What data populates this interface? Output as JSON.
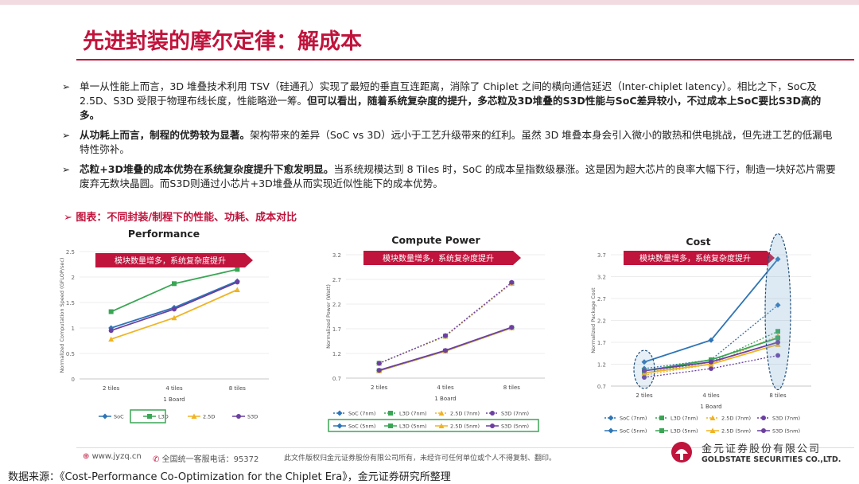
{
  "title": "先进封装的摩尔定律：解成本",
  "bullets": [
    {
      "mark": "➢",
      "parts": [
        {
          "t": "单一从性能上而言，3D 堆叠技术利用 TSV（硅通孔）实现了最短的垂直互连距离，消除了 Chiplet 之间的横向通信延迟（Inter-chiplet latency）。相比之下，SoC及2.5D、S3D 受限于物理布线长度，性能略逊一筹。",
          "b": false
        },
        {
          "t": "但可以看出，随着系统复杂度的提升，多芯粒及3D堆叠的S3D性能与SoC差异较小，不过成本上SoC要比S3D高的多。",
          "b": true
        }
      ]
    },
    {
      "mark": "➢",
      "parts": [
        {
          "t": "从功耗上而言，制程的优势较为显著。",
          "b": true
        },
        {
          "t": "架构带来的差异（SoC vs 3D）远小于工艺升级带来的红利。虽然 3D 堆叠本身会引入微小的散热和供电挑战，但先进工艺的低漏电特性弥补。",
          "b": false
        }
      ]
    },
    {
      "mark": "➢",
      "parts": [
        {
          "t": "芯粒+3D堆叠的成本优势在系统复杂度提升下愈发明显。",
          "b": true
        },
        {
          "t": "当系统规模达到 8 Tiles 时，SoC 的成本呈指数级暴涨。这是因为超大芯片的良率大幅下行，制造一块好芯片需要废弃无数块晶圆。而S3D则通过小芯片+3D堆叠从而实现近似性能下的成本优势。",
          "b": false
        }
      ]
    }
  ],
  "chart_caption": "➢ 图表：不同封装/制程下的性能、功耗、成本对比",
  "banner_text": "模块数量增多，系统复杂度提升",
  "footer": {
    "website": "www.jyzq.cn",
    "hotline": "全国统一客服电话：95372",
    "copyright": "此文件版权归金元证券股份有限公司所有，未经许可任何单位或个人不得复制、翻印。",
    "company_cn": "金元证券股份有限公司",
    "company_en": "GOLDSTATE SECURITIES CO.,LTD."
  },
  "source": "数据来源：《Cost-Performance Co-Optimization for the Chiplet Era》，金元证券研究所整理",
  "colors": {
    "SoC": "#2e75b6",
    "L3D": "#3aa655",
    "2.5D": "#f0b323",
    "S3D": "#6b3fa0",
    "accent": "#c0143c"
  },
  "chart_data": [
    {
      "type": "line",
      "title": "Performance",
      "xlabel": "1 Board",
      "ylabel": "Normalized Computation Speed (GFLOP/sec)",
      "categories": [
        "2 tiles",
        "4 tiles",
        "8 tiles"
      ],
      "ylim": [
        0,
        2.5
      ],
      "yticks": [
        "0",
        "0.5",
        "1",
        "1.5",
        "2",
        "2.5"
      ],
      "series": [
        {
          "name": "SoC",
          "values": [
            1.0,
            1.4,
            1.92
          ]
        },
        {
          "name": "L3D",
          "values": [
            1.32,
            1.87,
            2.15
          ]
        },
        {
          "name": "2.5D",
          "values": [
            0.78,
            1.2,
            1.75
          ]
        },
        {
          "name": "S3D",
          "values": [
            0.95,
            1.37,
            1.9
          ]
        }
      ]
    },
    {
      "type": "line",
      "title": "Compute Power",
      "xlabel": "1 Board",
      "ylabel": "Normalized Power (Watt)",
      "categories": [
        "2 tiles",
        "4 tiles",
        "8 tiles"
      ],
      "ylim": [
        0.7,
        3.2
      ],
      "yticks": [
        "0.7",
        "1.2",
        "1.7",
        "2.2",
        "2.7",
        "3.2"
      ],
      "series": [
        {
          "name": "SoC (7nm)",
          "values": [
            1.0,
            1.55,
            2.62
          ]
        },
        {
          "name": "L3D (7nm)",
          "values": [
            1.0,
            1.55,
            2.62
          ]
        },
        {
          "name": "2.5D (7nm)",
          "values": [
            1.0,
            1.55,
            2.62
          ]
        },
        {
          "name": "S3D (7nm)",
          "values": [
            1.0,
            1.56,
            2.64
          ]
        },
        {
          "name": "SoC (5nm)",
          "values": [
            0.85,
            1.25,
            1.72
          ]
        },
        {
          "name": "L3D (5nm)",
          "values": [
            0.85,
            1.25,
            1.72
          ]
        },
        {
          "name": "2.5D (5nm)",
          "values": [
            0.85,
            1.25,
            1.72
          ]
        },
        {
          "name": "S3D (5nm)",
          "values": [
            0.86,
            1.26,
            1.73
          ]
        }
      ]
    },
    {
      "type": "line",
      "title": "Cost",
      "xlabel": "1 Board",
      "ylabel": "Normalized Package Cost",
      "categories": [
        "2 tiles",
        "4 tiles",
        "8 tiles"
      ],
      "ylim": [
        0.7,
        3.7
      ],
      "yticks": [
        "0.7",
        "1.2",
        "1.7",
        "2.2",
        "2.7",
        "3.2",
        "3.7"
      ],
      "series": [
        {
          "name": "SoC (7nm)",
          "values": [
            1.1,
            1.3,
            2.55
          ]
        },
        {
          "name": "L3D (7nm)",
          "values": [
            1.0,
            1.25,
            1.95
          ]
        },
        {
          "name": "2.5D (7nm)",
          "values": [
            0.95,
            1.2,
            1.85
          ]
        },
        {
          "name": "S3D (7nm)",
          "values": [
            0.9,
            1.1,
            1.4
          ]
        },
        {
          "name": "SoC (5nm)",
          "values": [
            1.25,
            1.75,
            3.6
          ]
        },
        {
          "name": "L3D (5nm)",
          "values": [
            1.05,
            1.3,
            1.8
          ]
        },
        {
          "name": "2.5D (5nm)",
          "values": [
            1.0,
            1.2,
            1.65
          ]
        },
        {
          "name": "S3D (5nm)",
          "values": [
            1.05,
            1.25,
            1.7
          ]
        }
      ]
    }
  ]
}
